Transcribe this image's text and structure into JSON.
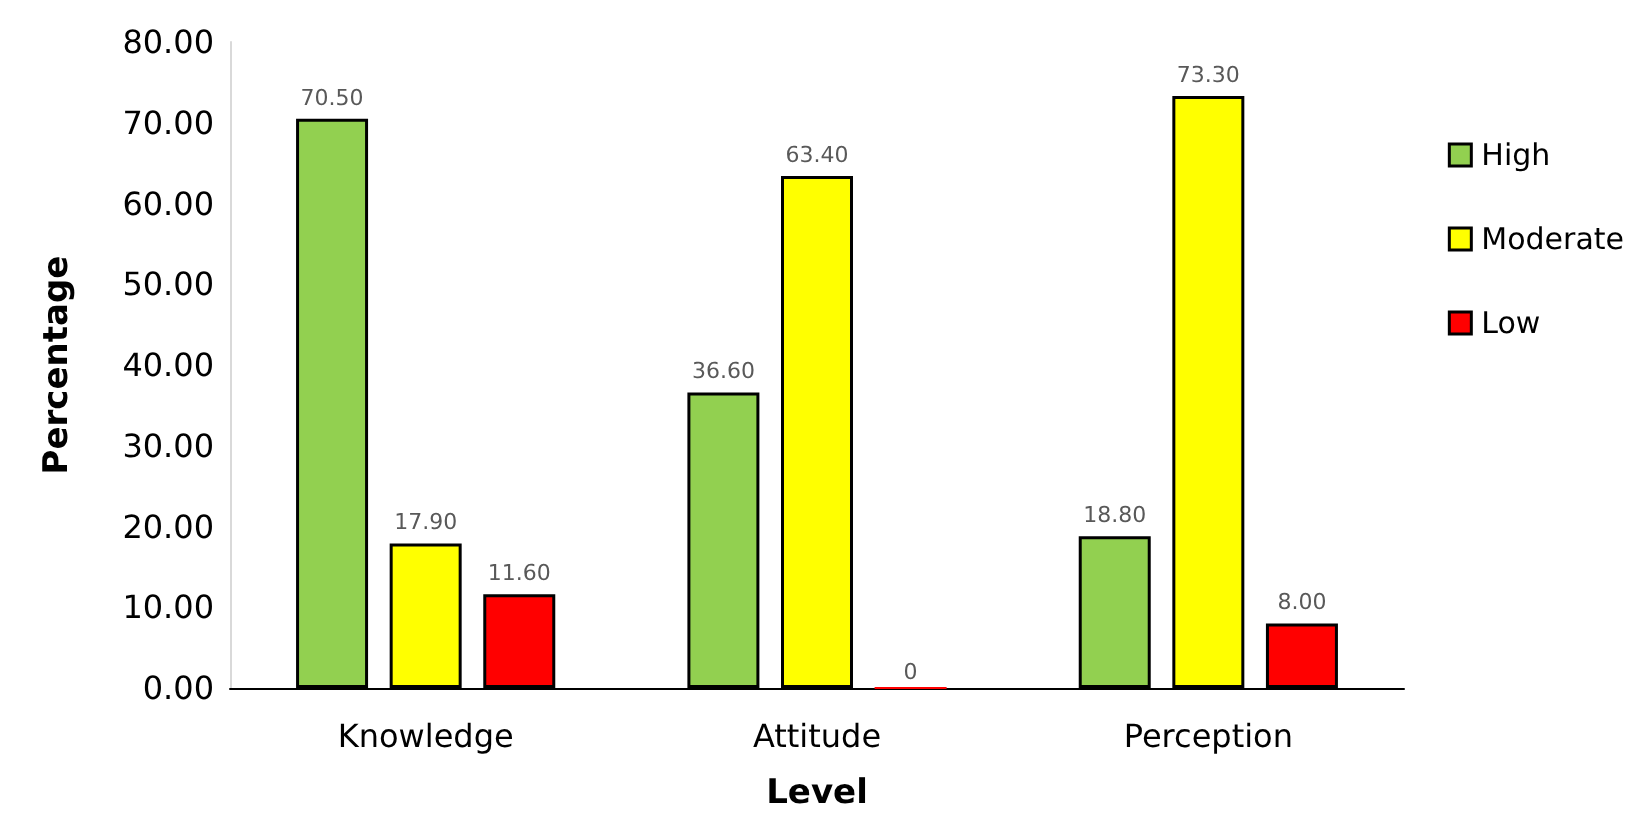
{
  "chart_data": {
    "type": "bar",
    "xlabel": "Level",
    "ylabel": "Percentage",
    "categories": [
      "Knowledge",
      "Attitude",
      "Perception"
    ],
    "series": [
      {
        "name": "High",
        "color": "#92d050",
        "values": [
          70.5,
          36.6,
          18.8
        ],
        "value_labels": [
          "70.50",
          "36.60",
          "18.80"
        ]
      },
      {
        "name": "Moderate",
        "color": "#ffff00",
        "values": [
          17.9,
          63.4,
          73.3
        ],
        "value_labels": [
          "17.90",
          "63.40",
          "73.30"
        ]
      },
      {
        "name": "Low",
        "color": "#ff0000",
        "values": [
          11.6,
          0,
          8
        ],
        "value_labels": [
          "11.60",
          "0",
          "8.00"
        ]
      }
    ],
    "ylim": [
      0,
      80
    ],
    "yticks": [
      {
        "value": 0,
        "label": "0.00"
      },
      {
        "value": 10,
        "label": "10.00"
      },
      {
        "value": 20,
        "label": "20.00"
      },
      {
        "value": 30,
        "label": "30.00"
      },
      {
        "value": 40,
        "label": "40.00"
      },
      {
        "value": 50,
        "label": "50.00"
      },
      {
        "value": 60,
        "label": "60.00"
      },
      {
        "value": 70,
        "label": "70.00"
      },
      {
        "value": 80,
        "label": "80.00"
      }
    ],
    "legend": "right",
    "grid": false
  }
}
